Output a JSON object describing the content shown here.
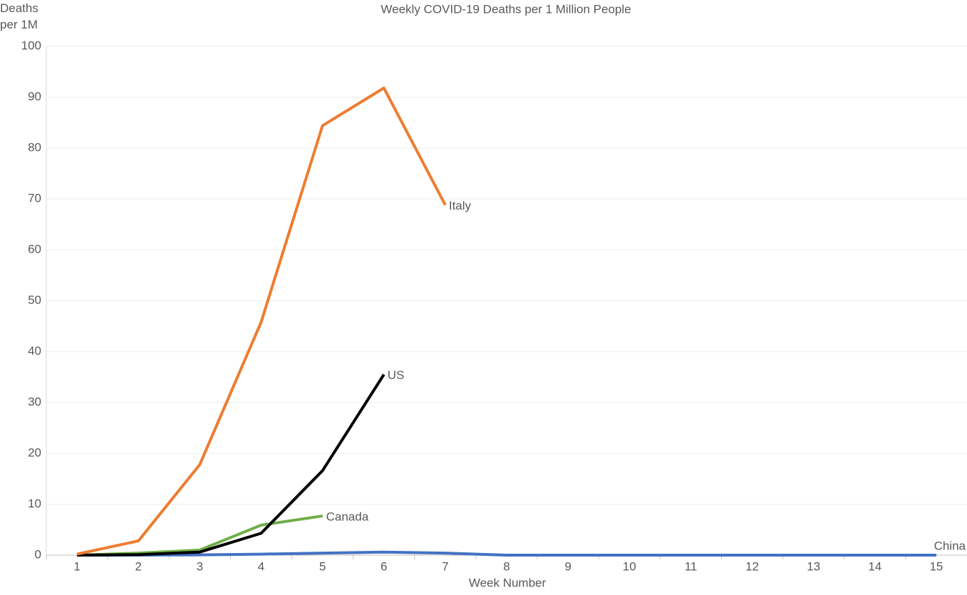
{
  "chart_data": {
    "type": "line",
    "title": "Weekly COVID-19 Deaths per 1 Million People",
    "y_label": "Deaths per 1M",
    "x_label": "Week Number",
    "categories": [
      "1",
      "2",
      "3",
      "4",
      "5",
      "6",
      "7",
      "8",
      "9",
      "10",
      "11",
      "12",
      "13",
      "14",
      "15"
    ],
    "series": [
      {
        "name": "Italy",
        "color": "#ed7d31",
        "values": [
          0.2,
          2.8,
          17.8,
          45.8,
          84.4,
          91.8,
          68.8,
          null,
          null,
          null,
          null,
          null,
          null,
          null,
          null
        ]
      },
      {
        "name": "US",
        "color": "#000000",
        "values": [
          0,
          0.1,
          0.6,
          4.3,
          16.6,
          35.5,
          null,
          null,
          null,
          null,
          null,
          null,
          null,
          null,
          null
        ]
      },
      {
        "name": "Canada",
        "color": "#70ad47",
        "values": [
          0,
          0.4,
          1.0,
          5.9,
          7.7,
          null,
          null,
          null,
          null,
          null,
          null,
          null,
          null,
          null,
          null
        ]
      },
      {
        "name": "China",
        "color": "#4472c4",
        "values": [
          0,
          0,
          0.05,
          0.2,
          0.4,
          0.6,
          0.4,
          0,
          0,
          0,
          0,
          0,
          0,
          0,
          0
        ]
      }
    ],
    "ylim": [
      0,
      100
    ],
    "yticks": [
      0,
      10,
      20,
      30,
      40,
      50,
      60,
      70,
      80,
      90,
      100
    ],
    "grid": true
  }
}
